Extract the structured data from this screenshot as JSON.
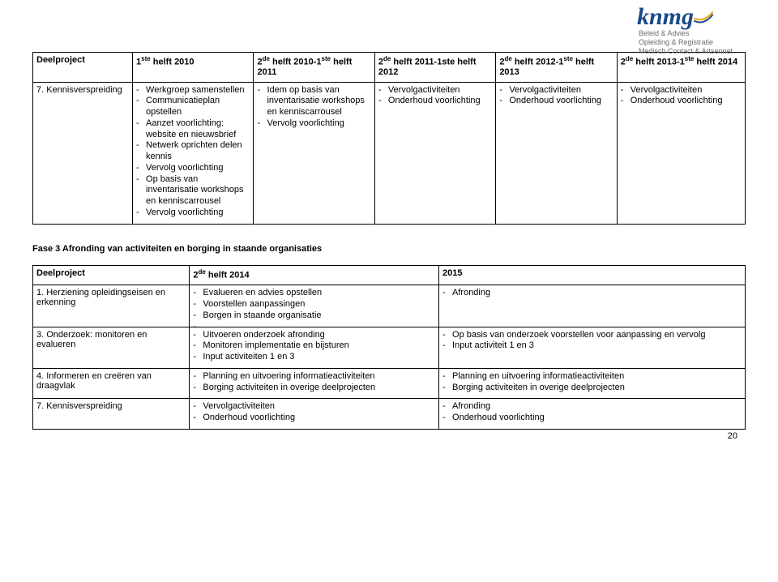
{
  "logo": {
    "main": "knmg",
    "sub1": "Beleid & Advies",
    "sub2": "Opleiding & Registratie",
    "sub3": "Medisch Contact & Artsennet"
  },
  "table1": {
    "headers": {
      "c0": "Deelproject",
      "c1_pre": "1",
      "c1_sup": "ste",
      "c1_post": " helft 2010",
      "c2_pre": "2",
      "c2_sup": "de",
      "c2_mid": " helft 2010-1",
      "c2_sup2": "ste",
      "c2_post": " helft 2011",
      "c3_pre": "2",
      "c3_sup": "de",
      "c3_post": " helft 2011-1ste helft 2012",
      "c4_pre": "2",
      "c4_sup": "de",
      "c4_mid": " helft 2012-1",
      "c4_sup2": "ste",
      "c4_post": " helft 2013",
      "c5_pre": "2",
      "c5_sup": "de",
      "c5_mid": " helft 2013-1",
      "c5_sup2": "ste",
      "c5_post": " helft 2014"
    },
    "row": {
      "c0": "7.  Kennisverspreiding",
      "c1": [
        "Werkgroep samenstellen",
        "Communicatieplan opstellen",
        "Aanzet voorlichting: website en nieuwsbrief",
        "Netwerk oprichten delen kennis",
        "Vervolg voorlichting",
        "Op basis van inventarisatie workshops en kenniscarrousel",
        "Vervolg voorlichting"
      ],
      "c2": [
        "Idem op basis van inventarisatie workshops en kenniscarrousel",
        "Vervolg voorlichting"
      ],
      "c3": [
        "Vervolgactiviteiten",
        "Onderhoud voorlichting"
      ],
      "c4": [
        "Vervolgactiviteiten",
        "Onderhoud voorlichting"
      ],
      "c5": [
        "Vervolgactiviteiten",
        "Onderhoud voorlichting"
      ]
    }
  },
  "section_title": "Fase 3 Afronding van activiteiten en borging in staande organisaties",
  "table2": {
    "headers": {
      "c0": "Deelproject",
      "c1_pre": "2",
      "c1_sup": "de",
      "c1_post": " helft 2014",
      "c2": "2015"
    },
    "rows": [
      {
        "c0": "1.  Herziening opleidingseisen en erkenning",
        "c1": [
          "Evalueren en advies opstellen",
          "Voorstellen aanpassingen",
          "Borgen in staande organisatie",
          ""
        ],
        "c2": [
          "Afronding"
        ]
      },
      {
        "c0": "3.  Onderzoek: monitoren en evalueren",
        "c1": [
          "Uitvoeren onderzoek afronding",
          "Monitoren implementatie en bijsturen",
          "Input activiteiten 1 en 3"
        ],
        "c2": [
          "Op basis van onderzoek voorstellen voor aanpassing en vervolg",
          "Input activiteit 1 en 3"
        ]
      },
      {
        "c0": "4.  Informeren en creëren van draagvlak",
        "c1": [
          "Planning en uitvoering informatieactiviteiten",
          "Borging activiteiten in overige deelprojecten"
        ],
        "c2": [
          "Planning en uitvoering informatieactiviteiten",
          "Borging activiteiten in overige deelprojecten"
        ]
      },
      {
        "c0": "7.  Kennisverspreiding",
        "c1": [
          "Vervolgactiviteiten",
          "Onderhoud voorlichting"
        ],
        "c2": [
          "Afronding",
          "Onderhoud voorlichting"
        ]
      }
    ]
  },
  "page_number": "20"
}
